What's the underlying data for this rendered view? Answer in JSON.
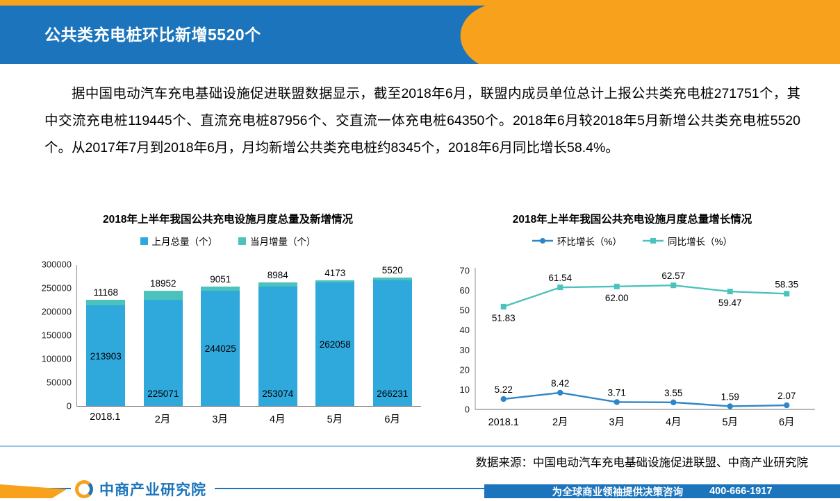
{
  "header": {
    "title": "公共类充电桩环比新增5520个"
  },
  "paragraph": "据中国电动汽车充电基础设施促进联盟数据显示，截至2018年6月，联盟内成员单位总计上报公共类充电桩271751个，其中交流充电桩119445个、直流充电桩87956个、交直流一体充电桩64350个。2018年6月较2018年5月新增公共类充电桩5520个。从2017年7月到2018年6月，月均新增公共类充电桩约8345个，2018年6月同比增长58.4%。",
  "source": "数据来源：中国电动汽车充电基础设施促进联盟、中商产业研究院",
  "footer": {
    "logo_text": "中商产业研究院",
    "slogan": "为全球商业领袖提供决策咨询",
    "phone": "400-666-1917"
  },
  "colors": {
    "orange": "#F7A11C",
    "header_blue": "#1C75BC",
    "bar_blue": "#2FA8DC",
    "teal": "#4BC2BC",
    "line_blue": "#2E86C8"
  },
  "chart_data": [
    {
      "type": "bar",
      "stacked": true,
      "title": "2018年上半年我国公共充电设施月度总量及新增情况",
      "categories": [
        "2018.1",
        "2月",
        "3月",
        "4月",
        "5月",
        "6月"
      ],
      "series": [
        {
          "name": "上月总量（个）",
          "color": "#2FA8DC",
          "values": [
            213903,
            225071,
            244025,
            253074,
            262058,
            266231
          ]
        },
        {
          "name": "当月增量（个）",
          "color": "#4BC2BC",
          "values": [
            11168,
            18952,
            9051,
            8984,
            4173,
            5520
          ]
        }
      ],
      "ylim": [
        0,
        300000
      ],
      "ytick_step": 50000,
      "legend_position": "top",
      "grid": false
    },
    {
      "type": "line",
      "title": "2018年上半年我国公共充电设施月度总量增长情况",
      "categories": [
        "2018.1",
        "2月",
        "3月",
        "4月",
        "5月",
        "6月"
      ],
      "series": [
        {
          "name": "环比增长（%）",
          "color": "#2E86C8",
          "marker": "circle",
          "values": [
            5.22,
            8.42,
            3.71,
            3.55,
            1.59,
            2.07
          ],
          "labels": [
            "5.22",
            "8.42",
            "3.71",
            "3.55",
            "1.59",
            "2.07"
          ],
          "label_side": [
            "above",
            "above",
            "above",
            "above",
            "above",
            "above"
          ]
        },
        {
          "name": "同比增长（%）",
          "color": "#4BC2BC",
          "marker": "square",
          "values": [
            51.83,
            61.54,
            62.0,
            62.57,
            59.47,
            58.35
          ],
          "labels": [
            "51.83",
            "61.54",
            "62.00",
            "62.57",
            "59.47",
            "58.35"
          ],
          "label_side": [
            "below",
            "above",
            "below",
            "above",
            "below",
            "above"
          ]
        }
      ],
      "ylim": [
        0,
        70
      ],
      "ytick_step": 10,
      "legend_position": "top",
      "grid": false
    }
  ]
}
